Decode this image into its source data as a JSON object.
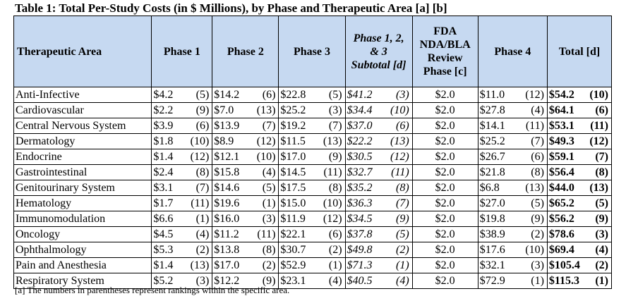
{
  "title": "Table 1:  Total Per-Study Costs (in $ Millions), by Phase and Therapeutic Area [a] [b]",
  "headers": {
    "area": "Therapeutic Area",
    "phase1": "Phase 1",
    "phase2": "Phase 2",
    "phase3": "Phase 3",
    "subtotal_l1": "Phase 1, 2,",
    "subtotal_l2": "& 3",
    "subtotal_l3": "Subtotal [d]",
    "fda_l1": "FDA",
    "fda_l2": "NDA/BLA",
    "fda_l3": "Review",
    "fda_l4": "Phase [c]",
    "phase4": "Phase 4",
    "total": "Total [d]"
  },
  "rows": [
    {
      "area": "Anti-Infective",
      "p1": "$4.2",
      "p1r": "(5)",
      "p2": "$14.2",
      "p2r": "(6)",
      "p3": "$22.8",
      "p3r": "(5)",
      "sub": "$41.2",
      "subr": "(3)",
      "fda": "$2.0",
      "p4": "$11.0",
      "p4r": "(12)",
      "tot": "$54.2",
      "totr": "(10)"
    },
    {
      "area": "Cardiovascular",
      "p1": "$2.2",
      "p1r": "(9)",
      "p2": "$7.0",
      "p2r": "(13)",
      "p3": "$25.2",
      "p3r": "(3)",
      "sub": "$34.4",
      "subr": "(10)",
      "fda": "$2.0",
      "p4": "$27.8",
      "p4r": "(4)",
      "tot": "$64.1",
      "totr": "(6)"
    },
    {
      "area": "Central Nervous System",
      "p1": "$3.9",
      "p1r": "(6)",
      "p2": "$13.9",
      "p2r": "(7)",
      "p3": "$19.2",
      "p3r": "(7)",
      "sub": "$37.0",
      "subr": "(6)",
      "fda": "$2.0",
      "p4": "$14.1",
      "p4r": "(11)",
      "tot": "$53.1",
      "totr": "(11)"
    },
    {
      "area": "Dermatology",
      "p1": "$1.8",
      "p1r": "(10)",
      "p2": "$8.9",
      "p2r": "(12)",
      "p3": "$11.5",
      "p3r": "(13)",
      "sub": "$22.2",
      "subr": "(13)",
      "fda": "$2.0",
      "p4": "$25.2",
      "p4r": "(7)",
      "tot": "$49.3",
      "totr": "(12)"
    },
    {
      "area": "Endocrine",
      "p1": "$1.4",
      "p1r": "(12)",
      "p2": "$12.1",
      "p2r": "(10)",
      "p3": "$17.0",
      "p3r": "(9)",
      "sub": "$30.5",
      "subr": "(12)",
      "fda": "$2.0",
      "p4": "$26.7",
      "p4r": "(6)",
      "tot": "$59.1",
      "totr": "(7)"
    },
    {
      "area": "Gastrointestinal",
      "p1": "$2.4",
      "p1r": "(8)",
      "p2": "$15.8",
      "p2r": "(4)",
      "p3": "$14.5",
      "p3r": "(11)",
      "sub": "$32.7",
      "subr": "(11)",
      "fda": "$2.0",
      "p4": "$21.8",
      "p4r": "(8)",
      "tot": "$56.4",
      "totr": "(8)"
    },
    {
      "area": "Genitourinary System",
      "p1": "$3.1",
      "p1r": "(7)",
      "p2": "$14.6",
      "p2r": "(5)",
      "p3": "$17.5",
      "p3r": "(8)",
      "sub": "$35.2",
      "subr": "(8)",
      "fda": "$2.0",
      "p4": "$6.8",
      "p4r": "(13)",
      "tot": "$44.0",
      "totr": "(13)"
    },
    {
      "area": "Hematology",
      "p1": "$1.7",
      "p1r": "(11)",
      "p2": "$19.6",
      "p2r": "(1)",
      "p3": "$15.0",
      "p3r": "(10)",
      "sub": "$36.3",
      "subr": "(7)",
      "fda": "$2.0",
      "p4": "$27.0",
      "p4r": "(5)",
      "tot": "$65.2",
      "totr": "(5)"
    },
    {
      "area": "Immunomodulation",
      "p1": "$6.6",
      "p1r": "(1)",
      "p2": "$16.0",
      "p2r": "(3)",
      "p3": "$11.9",
      "p3r": "(12)",
      "sub": "$34.5",
      "subr": "(9)",
      "fda": "$2.0",
      "p4": "$19.8",
      "p4r": "(9)",
      "tot": "$56.2",
      "totr": "(9)"
    },
    {
      "area": "Oncology",
      "p1": "$4.5",
      "p1r": "(4)",
      "p2": "$11.2",
      "p2r": "(11)",
      "p3": "$22.1",
      "p3r": "(6)",
      "sub": "$37.8",
      "subr": "(5)",
      "fda": "$2.0",
      "p4": "$38.9",
      "p4r": "(2)",
      "tot": "$78.6",
      "totr": "(3)"
    },
    {
      "area": "Ophthalmology",
      "p1": "$5.3",
      "p1r": "(2)",
      "p2": "$13.8",
      "p2r": "(8)",
      "p3": "$30.7",
      "p3r": "(2)",
      "sub": "$49.8",
      "subr": "(2)",
      "fda": "$2.0",
      "p4": "$17.6",
      "p4r": "(10)",
      "tot": "$69.4",
      "totr": "(4)"
    },
    {
      "area": "Pain and Anesthesia",
      "p1": "$1.4",
      "p1r": "(13)",
      "p2": "$17.0",
      "p2r": "(2)",
      "p3": "$52.9",
      "p3r": "(1)",
      "sub": "$71.3",
      "subr": "(1)",
      "fda": "$2.0",
      "p4": "$32.1",
      "p4r": "(3)",
      "tot": "$105.4",
      "totr": "(2)"
    },
    {
      "area": "Respiratory System",
      "p1": "$5.2",
      "p1r": "(3)",
      "p2": "$12.2",
      "p2r": "(9)",
      "p3": "$23.1",
      "p3r": "(4)",
      "sub": "$40.5",
      "subr": "(4)",
      "fda": "$2.0",
      "p4": "$72.9",
      "p4r": "(1)",
      "tot": "$115.3",
      "totr": "(1)"
    }
  ],
  "footnote": "[a] The numbers in parentheses represent rankings within the specific area."
}
